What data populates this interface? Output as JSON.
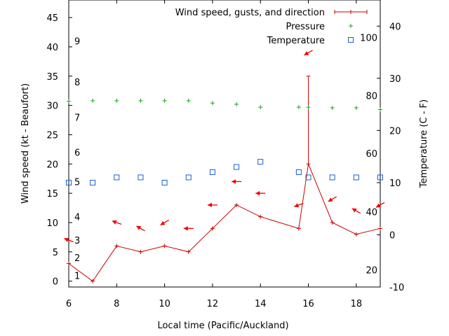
{
  "chart_data": {
    "type": "line",
    "xlabel": "Local time (Pacific/Auckland)",
    "ylabel_left": "Wind speed (kt - Beaufort)",
    "ylabel_right": "Temperature (C - F)",
    "x_range": [
      6,
      19
    ],
    "y_left_range": [
      -1,
      48
    ],
    "y_right_range": [
      -10,
      45
    ],
    "x_ticks": [
      6,
      8,
      10,
      12,
      14,
      16,
      18
    ],
    "y_left_ticks": [
      0,
      5,
      10,
      15,
      20,
      25,
      30,
      35,
      40,
      45
    ],
    "y_right_ticks": [
      -10,
      0,
      10,
      20,
      30,
      40
    ],
    "beaufort_labels": [
      {
        "label": "1",
        "wind": 1
      },
      {
        "label": "2",
        "wind": 4
      },
      {
        "label": "3",
        "wind": 7
      },
      {
        "label": "4",
        "wind": 11
      },
      {
        "label": "5",
        "wind": 17
      },
      {
        "label": "6",
        "wind": 22
      },
      {
        "label": "7",
        "wind": 28
      },
      {
        "label": "8",
        "wind": 34
      },
      {
        "label": "9",
        "wind": 41
      }
    ],
    "fahrenheit_labels": [
      {
        "label": "20",
        "temp": -6.7
      },
      {
        "label": "40",
        "temp": 4.4
      },
      {
        "label": "60",
        "temp": 15.6
      },
      {
        "label": "80",
        "temp": 26.7
      },
      {
        "label": "100",
        "temp": 37.8
      }
    ],
    "legend": [
      {
        "label": "Wind speed, gusts, and direction",
        "color": "#cc0000",
        "marker": "plus-errorbar"
      },
      {
        "label": "Pressure",
        "color": "#21a121",
        "marker": "plus"
      },
      {
        "label": "Temperature",
        "color": "#1a5fd0",
        "marker": "square"
      }
    ],
    "series": [
      {
        "name": "Wind speed",
        "color": "#cc0000",
        "x": [
          6,
          7,
          8,
          9,
          10,
          11,
          12,
          13,
          14,
          15.6,
          16,
          17,
          18,
          19
        ],
        "values": [
          3,
          0,
          6,
          5,
          6,
          5,
          9,
          13,
          11,
          9,
          20,
          10,
          8,
          9
        ]
      },
      {
        "name": "Wind gust",
        "color": "#cc0000",
        "x": [
          16
        ],
        "values": [
          35
        ]
      },
      {
        "name": "Wind direction",
        "color": "#ee0000",
        "points": [
          {
            "x": 6,
            "wind": 7,
            "angle": 160
          },
          {
            "x": 8,
            "wind": 10,
            "angle": 160
          },
          {
            "x": 9,
            "wind": 9,
            "angle": 150
          },
          {
            "x": 10,
            "wind": 10,
            "angle": 210
          },
          {
            "x": 11,
            "wind": 9,
            "angle": 180
          },
          {
            "x": 12,
            "wind": 13,
            "angle": 180
          },
          {
            "x": 13,
            "wind": 17,
            "angle": 180
          },
          {
            "x": 14,
            "wind": 15,
            "angle": 180
          },
          {
            "x": 15.6,
            "wind": 13,
            "angle": 200
          },
          {
            "x": 16,
            "wind": 39,
            "angle": 210
          },
          {
            "x": 17,
            "wind": 14,
            "angle": 210
          },
          {
            "x": 18,
            "wind": 12,
            "angle": 150
          },
          {
            "x": 19,
            "wind": 13,
            "angle": 210
          }
        ]
      },
      {
        "name": "Pressure",
        "color": "#21a121",
        "x": [
          6,
          7,
          8,
          9,
          10,
          11,
          12,
          13,
          14,
          15.6,
          16,
          17,
          18,
          19
        ],
        "values": [
          30.7,
          30.8,
          30.8,
          30.8,
          30.8,
          30.8,
          30.4,
          30.2,
          29.7,
          29.7,
          29.7,
          29.6,
          29.6,
          29.3
        ]
      },
      {
        "name": "Temperature",
        "color": "#1a5fd0",
        "x": [
          6,
          7,
          8,
          9,
          10,
          11,
          12,
          15.6,
          16,
          17,
          18,
          19,
          13,
          14
        ],
        "values": [
          10,
          10,
          11,
          11,
          10,
          11,
          12,
          12,
          11,
          11,
          11,
          11,
          13,
          14
        ]
      }
    ]
  }
}
